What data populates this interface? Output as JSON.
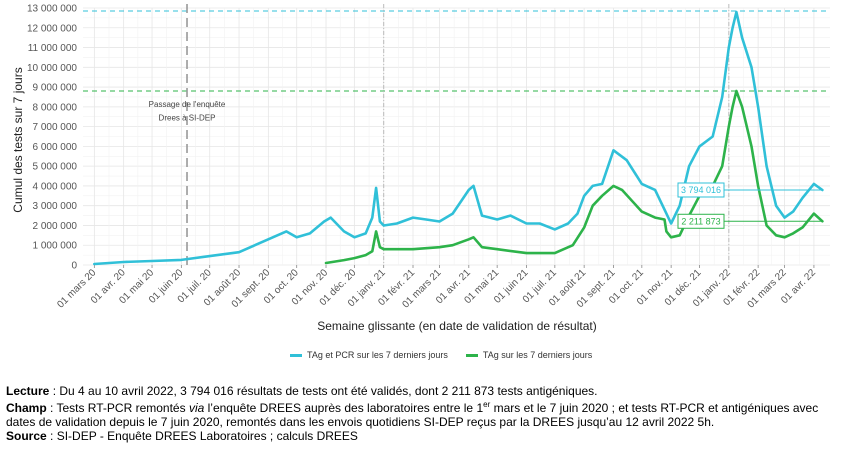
{
  "chart_data": {
    "type": "line",
    "ylabel": "Cumul des tests sur 7 jours",
    "xlabel": "Semaine glissante (en date de validation de résultat)",
    "ylim": [
      0,
      13000000
    ],
    "y_ticks": [
      0,
      1000000,
      2000000,
      3000000,
      4000000,
      5000000,
      6000000,
      7000000,
      8000000,
      9000000,
      10000000,
      11000000,
      12000000,
      13000000
    ],
    "y_tick_labels": [
      "0",
      "1 000 000",
      "2 000 000",
      "3 000 000",
      "4 000 000",
      "5 000 000",
      "6 000 000",
      "7 000 000",
      "8 000 000",
      "9 000 000",
      "10 000 000",
      "11 000 000",
      "12 000 000",
      "13 000 000"
    ],
    "x_ticks": [
      "2020-03-01",
      "2020-04-01",
      "2020-05-01",
      "2020-06-01",
      "2020-07-01",
      "2020-08-01",
      "2020-09-01",
      "2020-10-01",
      "2020-11-01",
      "2020-12-01",
      "2021-01-01",
      "2021-02-01",
      "2021-03-01",
      "2021-04-01",
      "2021-05-01",
      "2021-06-01",
      "2021-07-01",
      "2021-08-01",
      "2021-09-01",
      "2021-10-01",
      "2021-11-01",
      "2021-12-01",
      "2022-01-01",
      "2022-02-01",
      "2022-03-01",
      "2022-04-01"
    ],
    "x_tick_labels": [
      "01 mars 20",
      "01 avr. 20",
      "01 mai 20",
      "01 juin 20",
      "01 juil. 20",
      "01 août 20",
      "01 sept. 20",
      "01 oct. 20",
      "01 nov. 20",
      "01 déc. 20",
      "01 janv. 21",
      "01 févr. 21",
      "01 mars 21",
      "01 avr. 21",
      "01 mai 21",
      "01 juin 21",
      "01 juil. 21",
      "01 août 21",
      "01 sept. 21",
      "01 oct. 21",
      "01 nov. 21",
      "01 déc. 21",
      "01 janv. 22",
      "01 févr. 22",
      "01 mars 22",
      "01 avr. 22"
    ],
    "xlim": [
      "2020-02-18",
      "2022-04-18"
    ],
    "grid": true,
    "legend_position": "bottom",
    "series": [
      {
        "name": "TAg et PCR sur les 7 derniers jours",
        "color": "#30c0d8",
        "x": [
          "2020-03-01",
          "2020-04-01",
          "2020-05-01",
          "2020-06-01",
          "2020-06-07",
          "2020-07-01",
          "2020-08-01",
          "2020-09-01",
          "2020-09-20",
          "2020-10-01",
          "2020-10-15",
          "2020-10-30",
          "2020-11-06",
          "2020-11-20",
          "2020-12-01",
          "2020-12-13",
          "2020-12-20",
          "2020-12-24",
          "2020-12-28",
          "2021-01-01",
          "2021-01-15",
          "2021-02-01",
          "2021-02-15",
          "2021-03-01",
          "2021-03-15",
          "2021-04-01",
          "2021-04-06",
          "2021-04-15",
          "2021-05-01",
          "2021-05-15",
          "2021-06-01",
          "2021-06-15",
          "2021-07-01",
          "2021-07-15",
          "2021-07-25",
          "2021-08-01",
          "2021-08-10",
          "2021-08-20",
          "2021-09-01",
          "2021-09-15",
          "2021-10-01",
          "2021-10-15",
          "2021-10-25",
          "2021-11-01",
          "2021-11-10",
          "2021-11-20",
          "2021-12-01",
          "2021-12-15",
          "2021-12-25",
          "2022-01-01",
          "2022-01-05",
          "2022-01-09",
          "2022-01-15",
          "2022-01-25",
          "2022-02-01",
          "2022-02-10",
          "2022-02-20",
          "2022-03-01",
          "2022-03-10",
          "2022-03-20",
          "2022-04-01",
          "2022-04-10"
        ],
        "values": [
          50000,
          150000,
          200000,
          260000,
          300000,
          450000,
          650000,
          1300000,
          1700000,
          1400000,
          1600000,
          2200000,
          2400000,
          1700000,
          1400000,
          1600000,
          2400000,
          3900000,
          2200000,
          2000000,
          2100000,
          2400000,
          2300000,
          2200000,
          2600000,
          3800000,
          4000000,
          2500000,
          2300000,
          2500000,
          2100000,
          2100000,
          1800000,
          2100000,
          2600000,
          3500000,
          4000000,
          4100000,
          5800000,
          5300000,
          4100000,
          3800000,
          2800000,
          2100000,
          3000000,
          5000000,
          6000000,
          6500000,
          8500000,
          11000000,
          12000000,
          12800000,
          11500000,
          10000000,
          8000000,
          5000000,
          3000000,
          2400000,
          2700000,
          3400000,
          4100000,
          3794016
        ]
      },
      {
        "name": "TAg sur les 7 derniers jours",
        "color": "#2db34a",
        "x": [
          "2020-11-01",
          "2020-11-20",
          "2020-12-01",
          "2020-12-13",
          "2020-12-20",
          "2020-12-24",
          "2020-12-28",
          "2021-01-01",
          "2021-01-15",
          "2021-02-01",
          "2021-03-01",
          "2021-03-15",
          "2021-04-01",
          "2021-04-06",
          "2021-04-15",
          "2021-05-01",
          "2021-06-01",
          "2021-07-01",
          "2021-07-20",
          "2021-08-01",
          "2021-08-10",
          "2021-08-20",
          "2021-09-01",
          "2021-09-10",
          "2021-10-01",
          "2021-10-15",
          "2021-10-25",
          "2021-10-27",
          "2021-11-01",
          "2021-11-10",
          "2021-11-20",
          "2021-12-01",
          "2021-12-15",
          "2021-12-25",
          "2022-01-01",
          "2022-01-05",
          "2022-01-09",
          "2022-01-15",
          "2022-01-25",
          "2022-02-01",
          "2022-02-10",
          "2022-02-20",
          "2022-03-01",
          "2022-03-10",
          "2022-03-20",
          "2022-04-01",
          "2022-04-10"
        ],
        "values": [
          100000,
          250000,
          350000,
          500000,
          700000,
          1700000,
          900000,
          800000,
          800000,
          800000,
          900000,
          1000000,
          1300000,
          1400000,
          900000,
          800000,
          600000,
          600000,
          1000000,
          1900000,
          3000000,
          3500000,
          4000000,
          3800000,
          2700000,
          2400000,
          2300000,
          1700000,
          1400000,
          1500000,
          2500000,
          3500000,
          4000000,
          5000000,
          7000000,
          8000000,
          8800000,
          8000000,
          6000000,
          4000000,
          2000000,
          1500000,
          1400000,
          1600000,
          1900000,
          2600000,
          2211873
        ]
      }
    ],
    "reference_lines": [
      {
        "axis": "y",
        "value": 12850000,
        "color": "#30c0d8",
        "style": "dashed"
      },
      {
        "axis": "y",
        "value": 8800000,
        "color": "#2db34a",
        "style": "dashed"
      },
      {
        "axis": "x",
        "value": "2020-06-07",
        "color": "#999999",
        "style": "long-dash"
      },
      {
        "axis": "x",
        "value": "2021-01-01",
        "color": "#bbbbbb",
        "style": "dash-dot"
      },
      {
        "axis": "x",
        "value": "2022-01-01",
        "color": "#bbbbbb",
        "style": "dash-dot"
      }
    ],
    "annotations": [
      {
        "text": "Passage de l'enquête",
        "x": "2020-06-07",
        "y": 8000000
      },
      {
        "text": "Drees à SI-DEP",
        "x": "2020-06-07",
        "y": 7300000
      }
    ],
    "end_labels": [
      {
        "text": "3 794 016",
        "value": 3794016,
        "color": "#30c0d8"
      },
      {
        "text": "2 211 873",
        "value": 2211873,
        "color": "#2db34a"
      }
    ]
  },
  "notes": {
    "lecture_label": "Lecture",
    "lecture_text": " : Du 4 au 10 avril 2022, 3 794 016 résultats de tests ont été validés, dont 2 211 873 tests antigéniques.",
    "champ_label": "Champ",
    "champ_text_1": " : Tests RT-PCR remontés ",
    "champ_via": "via",
    "champ_text_2": " l’enquête DREES auprès des laboratoires entre le 1",
    "champ_sup": "er",
    "champ_text_3": " mars et le 7 juin 2020 ; et tests RT-PCR et antigéniques avec dates de validation depuis le 7 juin 2020, remontés dans les envois quotidiens SI-DEP reçus par la DREES jusqu’au 12 avril 2022 5h.",
    "source_label": "Source",
    "source_text": " : SI-DEP - Enquête DREES Laboratoires ; calculs DREES"
  }
}
